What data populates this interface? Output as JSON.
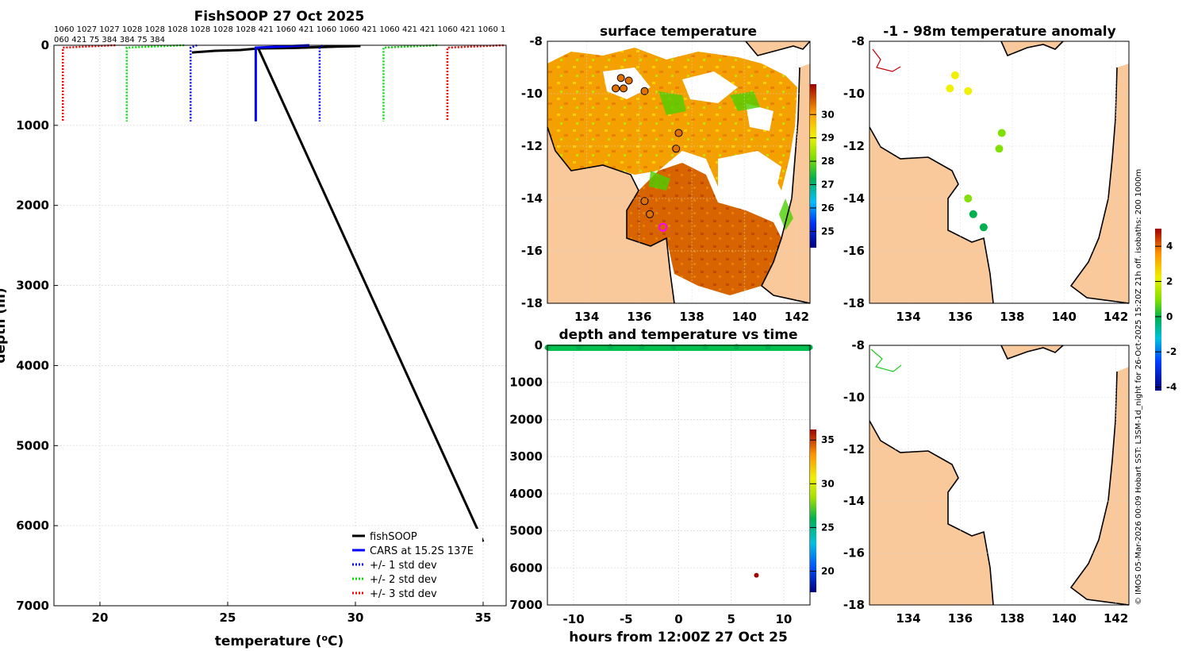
{
  "figure_title": "FishSOOP 27 Oct 2025",
  "credit": "© IMOS 05-Mar-2026 00:09 Hobart SST: L3SM-1d_night for 26-Oct-2025 15:20Z 21h off. isobaths: 200  1000m",
  "colors": {
    "fishsoop": "#000000",
    "cars": "#0000ff",
    "std1": "#0000ff",
    "std2": "#00dd00",
    "std3": "#ff0000",
    "land": "#f9c89b",
    "magenta": "#ff00ff"
  },
  "chart_data": [
    {
      "id": "profile",
      "type": "line",
      "title": "FishSOOP 27 Oct 2025",
      "xlabel": "temperature (oC)",
      "ylabel": "depth (m)",
      "xlim": [
        18.2,
        35.9
      ],
      "ylim": [
        7000,
        0
      ],
      "xticks": [
        20,
        25,
        30,
        35
      ],
      "yticks": [
        0,
        1000,
        2000,
        3000,
        4000,
        5000,
        6000,
        7000
      ],
      "top_labels": [
        "1060 1027 1027 1028 1028 1028 1028 1028 1028 421 1060 421 1060 1060 421 1060 421 421 1060 421 1060 1",
        "060 421 75 384 384 75 384"
      ],
      "legend": [
        "fishSOOP",
        "CARS at 15.2S 137E",
        "+/- 1 std dev",
        "+/- 2 std dev",
        "+/- 3 std dev"
      ],
      "series": [
        {
          "name": "fishSOOP",
          "x": [
            23.6,
            24.5,
            25.5,
            26.2,
            27.5,
            28.5,
            29.5,
            30.2,
            26.2,
            35.0
          ],
          "y": [
            90,
            70,
            60,
            40,
            35,
            25,
            15,
            10,
            40,
            6200
          ]
        },
        {
          "name": "CARS at 15.2S 137E",
          "x": [
            28.2,
            26.1,
            26.1,
            26.1
          ],
          "y": [
            0,
            30,
            300,
            950
          ]
        },
        {
          "name": "+/- 1 std dev low",
          "x": [
            23.8,
            23.55,
            23.55
          ],
          "y": [
            0,
            30,
            950
          ]
        },
        {
          "name": "+/- 1 std dev high",
          "x": [
            28.7,
            28.6,
            28.6
          ],
          "y": [
            0,
            30,
            950
          ]
        },
        {
          "name": "+/- 2 std dev low",
          "x": [
            23.3,
            21.05,
            21.05
          ],
          "y": [
            0,
            30,
            950
          ]
        },
        {
          "name": "+/- 2 std dev high",
          "x": [
            33.2,
            31.1,
            31.1
          ],
          "y": [
            0,
            30,
            950
          ]
        },
        {
          "name": "+/- 3 std dev low",
          "x": [
            20.6,
            18.55,
            18.55
          ],
          "y": [
            0,
            30,
            950
          ]
        },
        {
          "name": "+/- 3 std dev high",
          "x": [
            35.8,
            33.6,
            33.6
          ],
          "y": [
            0,
            30,
            950
          ]
        }
      ]
    },
    {
      "id": "sst",
      "type": "heatmap",
      "title": "surface temperature",
      "xlim": [
        132.5,
        142.5
      ],
      "ylim": [
        -18,
        -8
      ],
      "xticks": [
        134,
        136,
        138,
        140,
        142
      ],
      "yticks": [
        -8,
        -10,
        -12,
        -14,
        -16,
        -18
      ],
      "colorbar": {
        "min": 24.3,
        "max": 31.3,
        "ticks": [
          25,
          26,
          27,
          28,
          29,
          30
        ]
      },
      "markers": [
        {
          "lon": 135.1,
          "lat": -9.8
        },
        {
          "lon": 135.3,
          "lat": -9.4
        },
        {
          "lon": 135.4,
          "lat": -9.8
        },
        {
          "lon": 135.6,
          "lat": -9.5
        },
        {
          "lon": 136.2,
          "lat": -9.9
        },
        {
          "lon": 137.5,
          "lat": -11.5
        },
        {
          "lon": 137.4,
          "lat": -12.1
        },
        {
          "lon": 136.2,
          "lat": -14.1
        },
        {
          "lon": 136.4,
          "lat": -14.6
        },
        {
          "lon": 136.9,
          "lat": -15.1
        }
      ]
    },
    {
      "id": "anomaly",
      "type": "scatter",
      "title": "-1 - 98m temperature anomaly",
      "xlim": [
        132.5,
        142.5
      ],
      "ylim": [
        -18,
        -8
      ],
      "xticks": [
        134,
        136,
        138,
        140,
        142
      ],
      "yticks": [
        -8,
        -10,
        -12,
        -14,
        -16,
        -18
      ],
      "colorbar": {
        "min": -4.2,
        "max": 5.0,
        "ticks": [
          -4,
          -2,
          0,
          2,
          4
        ]
      },
      "points": [
        {
          "lon": 135.8,
          "lat": -9.3,
          "value": 2.2
        },
        {
          "lon": 135.6,
          "lat": -9.8,
          "value": 2.1
        },
        {
          "lon": 136.3,
          "lat": -9.9,
          "value": 2.0
        },
        {
          "lon": 137.6,
          "lat": -11.5,
          "value": 1.5
        },
        {
          "lon": 137.5,
          "lat": -12.1,
          "value": 1.3
        },
        {
          "lon": 136.3,
          "lat": -14.0,
          "value": 1.4
        },
        {
          "lon": 136.5,
          "lat": -14.6,
          "value": -0.5
        },
        {
          "lon": 136.9,
          "lat": -15.1,
          "value": -0.3
        }
      ]
    },
    {
      "id": "timeseries",
      "type": "scatter",
      "title": "depth and temperature vs time",
      "xlabel": "hours from 12:00Z 27 Oct 25",
      "xlim": [
        -12.5,
        12.5
      ],
      "ylim": [
        7000,
        0
      ],
      "xticks": [
        -10,
        -5,
        0,
        5,
        10
      ],
      "yticks": [
        0,
        1000,
        2000,
        3000,
        4000,
        5000,
        6000,
        7000
      ],
      "colorbar": {
        "min": 17.6,
        "max": 36.2,
        "ticks": [
          20,
          25,
          30,
          35
        ]
      },
      "points": [
        {
          "t": -12.5,
          "depth": 60,
          "temp": 26.5
        },
        {
          "t": -9.5,
          "depth": 50,
          "temp": 26.5
        },
        {
          "t": -6.5,
          "depth": 40,
          "temp": 26.0
        },
        {
          "t": -3.5,
          "depth": 45,
          "temp": 26.2
        },
        {
          "t": -0.5,
          "depth": 50,
          "temp": 26.4
        },
        {
          "t": 2.5,
          "depth": 45,
          "temp": 26.3
        },
        {
          "t": 5.5,
          "depth": 40,
          "temp": 26.1
        },
        {
          "t": 8.5,
          "depth": 45,
          "temp": 26.5
        },
        {
          "t": 12.5,
          "depth": 55,
          "temp": 26.2
        },
        {
          "t": 7.4,
          "depth": 6200,
          "temp": 35.0
        }
      ]
    },
    {
      "id": "lower_map",
      "type": "heatmap",
      "title": "",
      "xlim": [
        132.5,
        142.5
      ],
      "ylim": [
        -18,
        -8
      ],
      "xticks": [
        134,
        136,
        138,
        140,
        142
      ],
      "yticks": [
        -8,
        -10,
        -12,
        -14,
        -16,
        -18
      ]
    }
  ]
}
